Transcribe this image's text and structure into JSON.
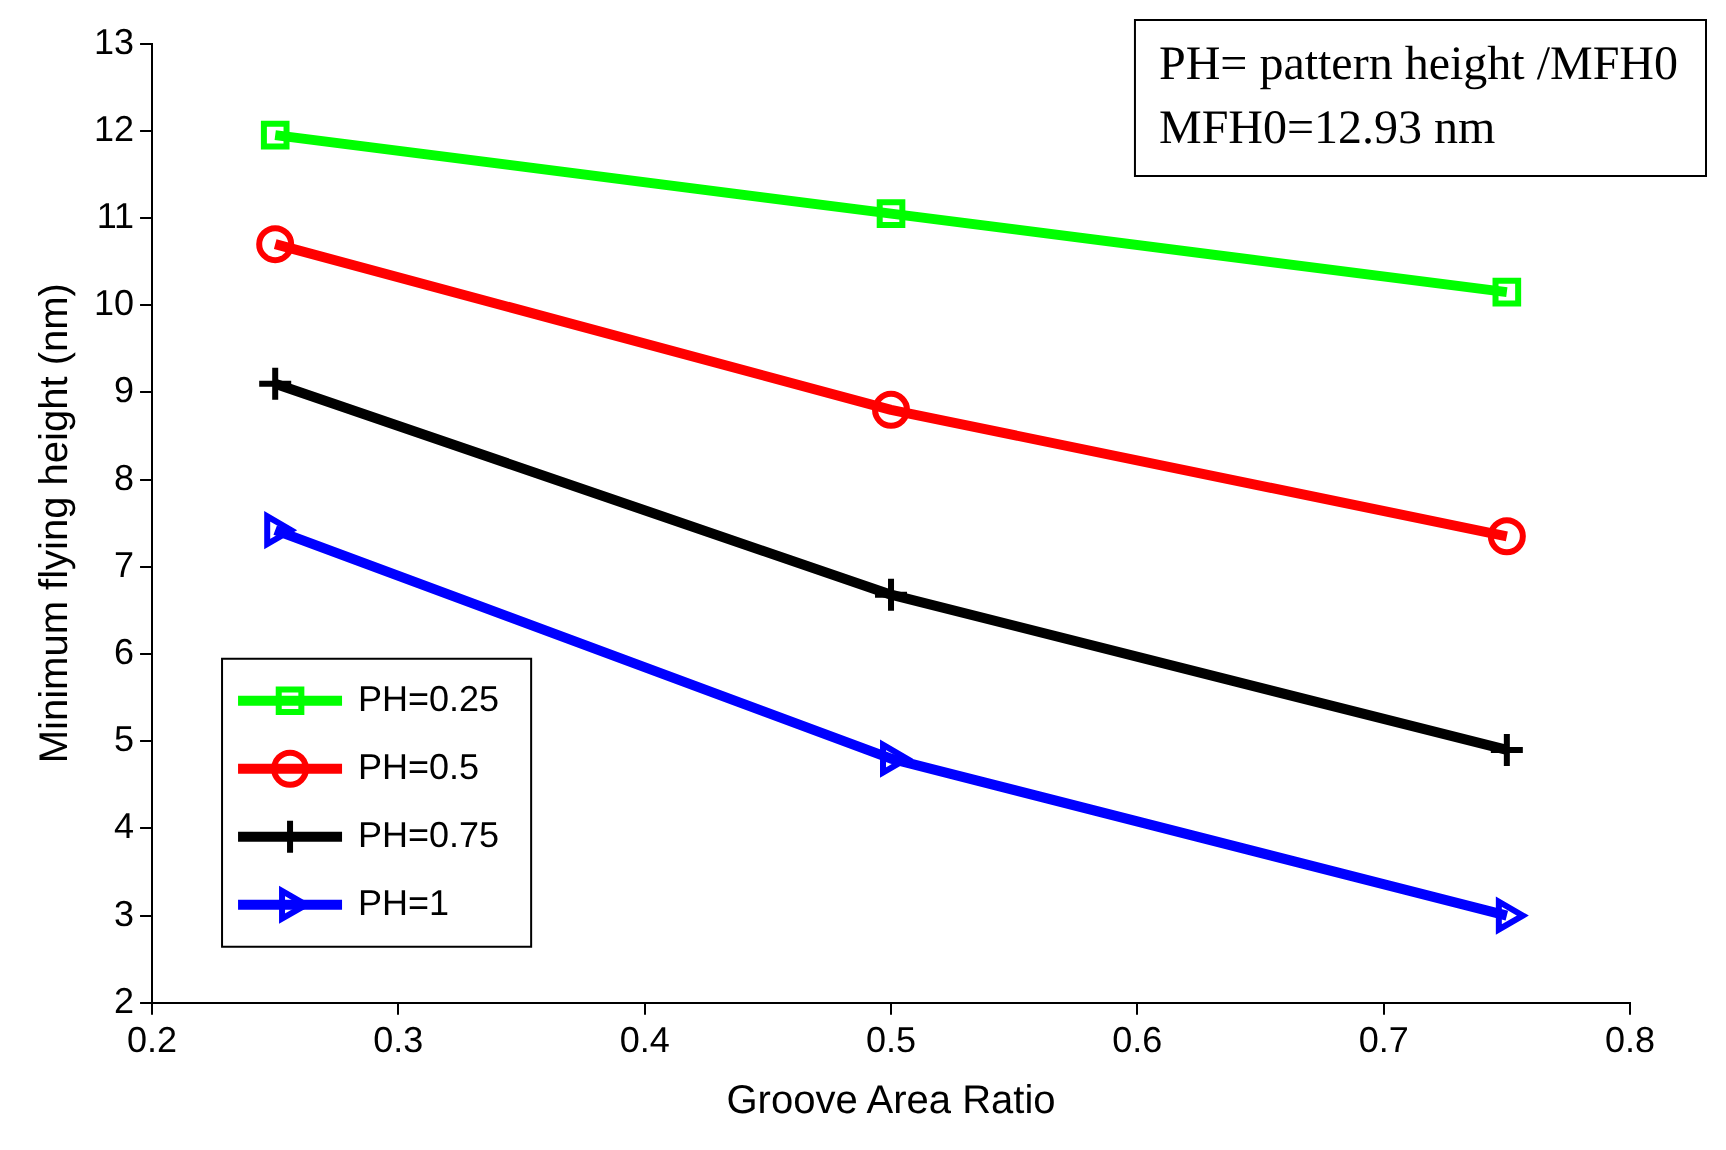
{
  "chart_data": {
    "type": "line",
    "xlabel": "Groove Area Ratio",
    "ylabel": "Minimum flying height (nm)",
    "annotations": [
      "PH= pattern height /MFH0",
      "MFH0=12.93 nm"
    ],
    "x": [
      0.25,
      0.5,
      0.75
    ],
    "series": [
      {
        "name": "PH=0.25",
        "color": "#00ff00",
        "marker": "square",
        "values": [
          11.95,
          11.05,
          10.15
        ]
      },
      {
        "name": "PH=0.5",
        "color": "#ff0000",
        "marker": "circle",
        "values": [
          10.7,
          8.8,
          7.35
        ]
      },
      {
        "name": "PH=0.75",
        "color": "#000000",
        "marker": "cross",
        "values": [
          9.1,
          6.68,
          4.9
        ]
      },
      {
        "name": "PH=1",
        "color": "#0000ff",
        "marker": "triangle",
        "values": [
          7.42,
          4.8,
          3.0
        ]
      }
    ],
    "xlim": [
      0.2,
      0.8
    ],
    "xticks": [
      0.2,
      0.3,
      0.4,
      0.5,
      0.6,
      0.7,
      0.8
    ],
    "ylim": [
      2,
      13
    ],
    "yticks": [
      2,
      3,
      4,
      5,
      6,
      7,
      8,
      9,
      10,
      11,
      12,
      13
    ],
    "grid": false,
    "legend": "bottom left",
    "line_style": "solid"
  }
}
